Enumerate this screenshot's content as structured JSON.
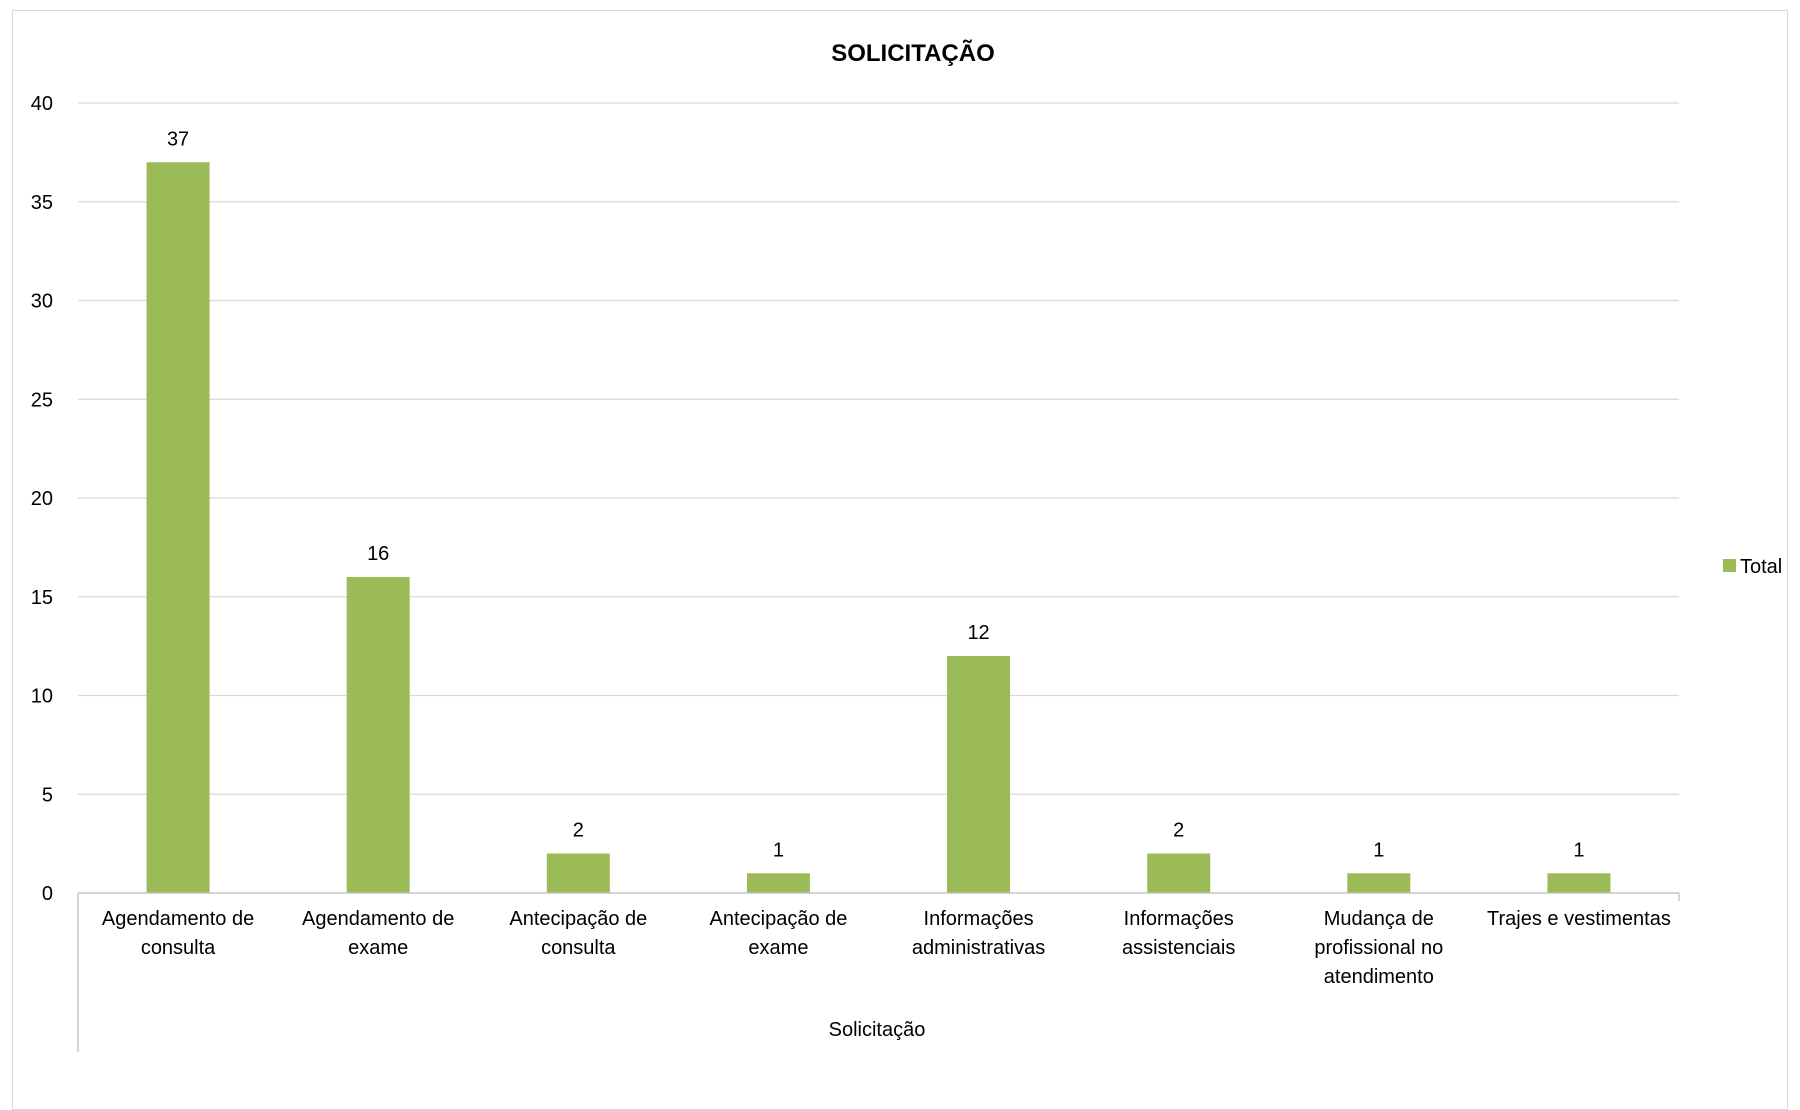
{
  "chart_data": {
    "type": "bar",
    "title": "SOLICITAÇÃO",
    "xlabel": "Solicitação",
    "ylabel": "",
    "ylim": [
      0,
      40
    ],
    "yticks": [
      0,
      5,
      10,
      15,
      20,
      25,
      30,
      35,
      40
    ],
    "grid": true,
    "legend_position": "right",
    "categories": [
      [
        "Agendamento de",
        "consulta"
      ],
      [
        "Agendamento de",
        "exame"
      ],
      [
        "Antecipação de",
        "consulta"
      ],
      [
        "Antecipação de",
        "exame"
      ],
      [
        "Informações",
        "administrativas"
      ],
      [
        "Informações",
        "assistenciais"
      ],
      [
        "Mudança de",
        "profissional no",
        "atendimento"
      ],
      [
        "Trajes e vestimentas"
      ]
    ],
    "series": [
      {
        "name": "Total",
        "color": "#9bbb59",
        "values": [
          37,
          16,
          2,
          1,
          12,
          2,
          1,
          1
        ]
      }
    ]
  }
}
